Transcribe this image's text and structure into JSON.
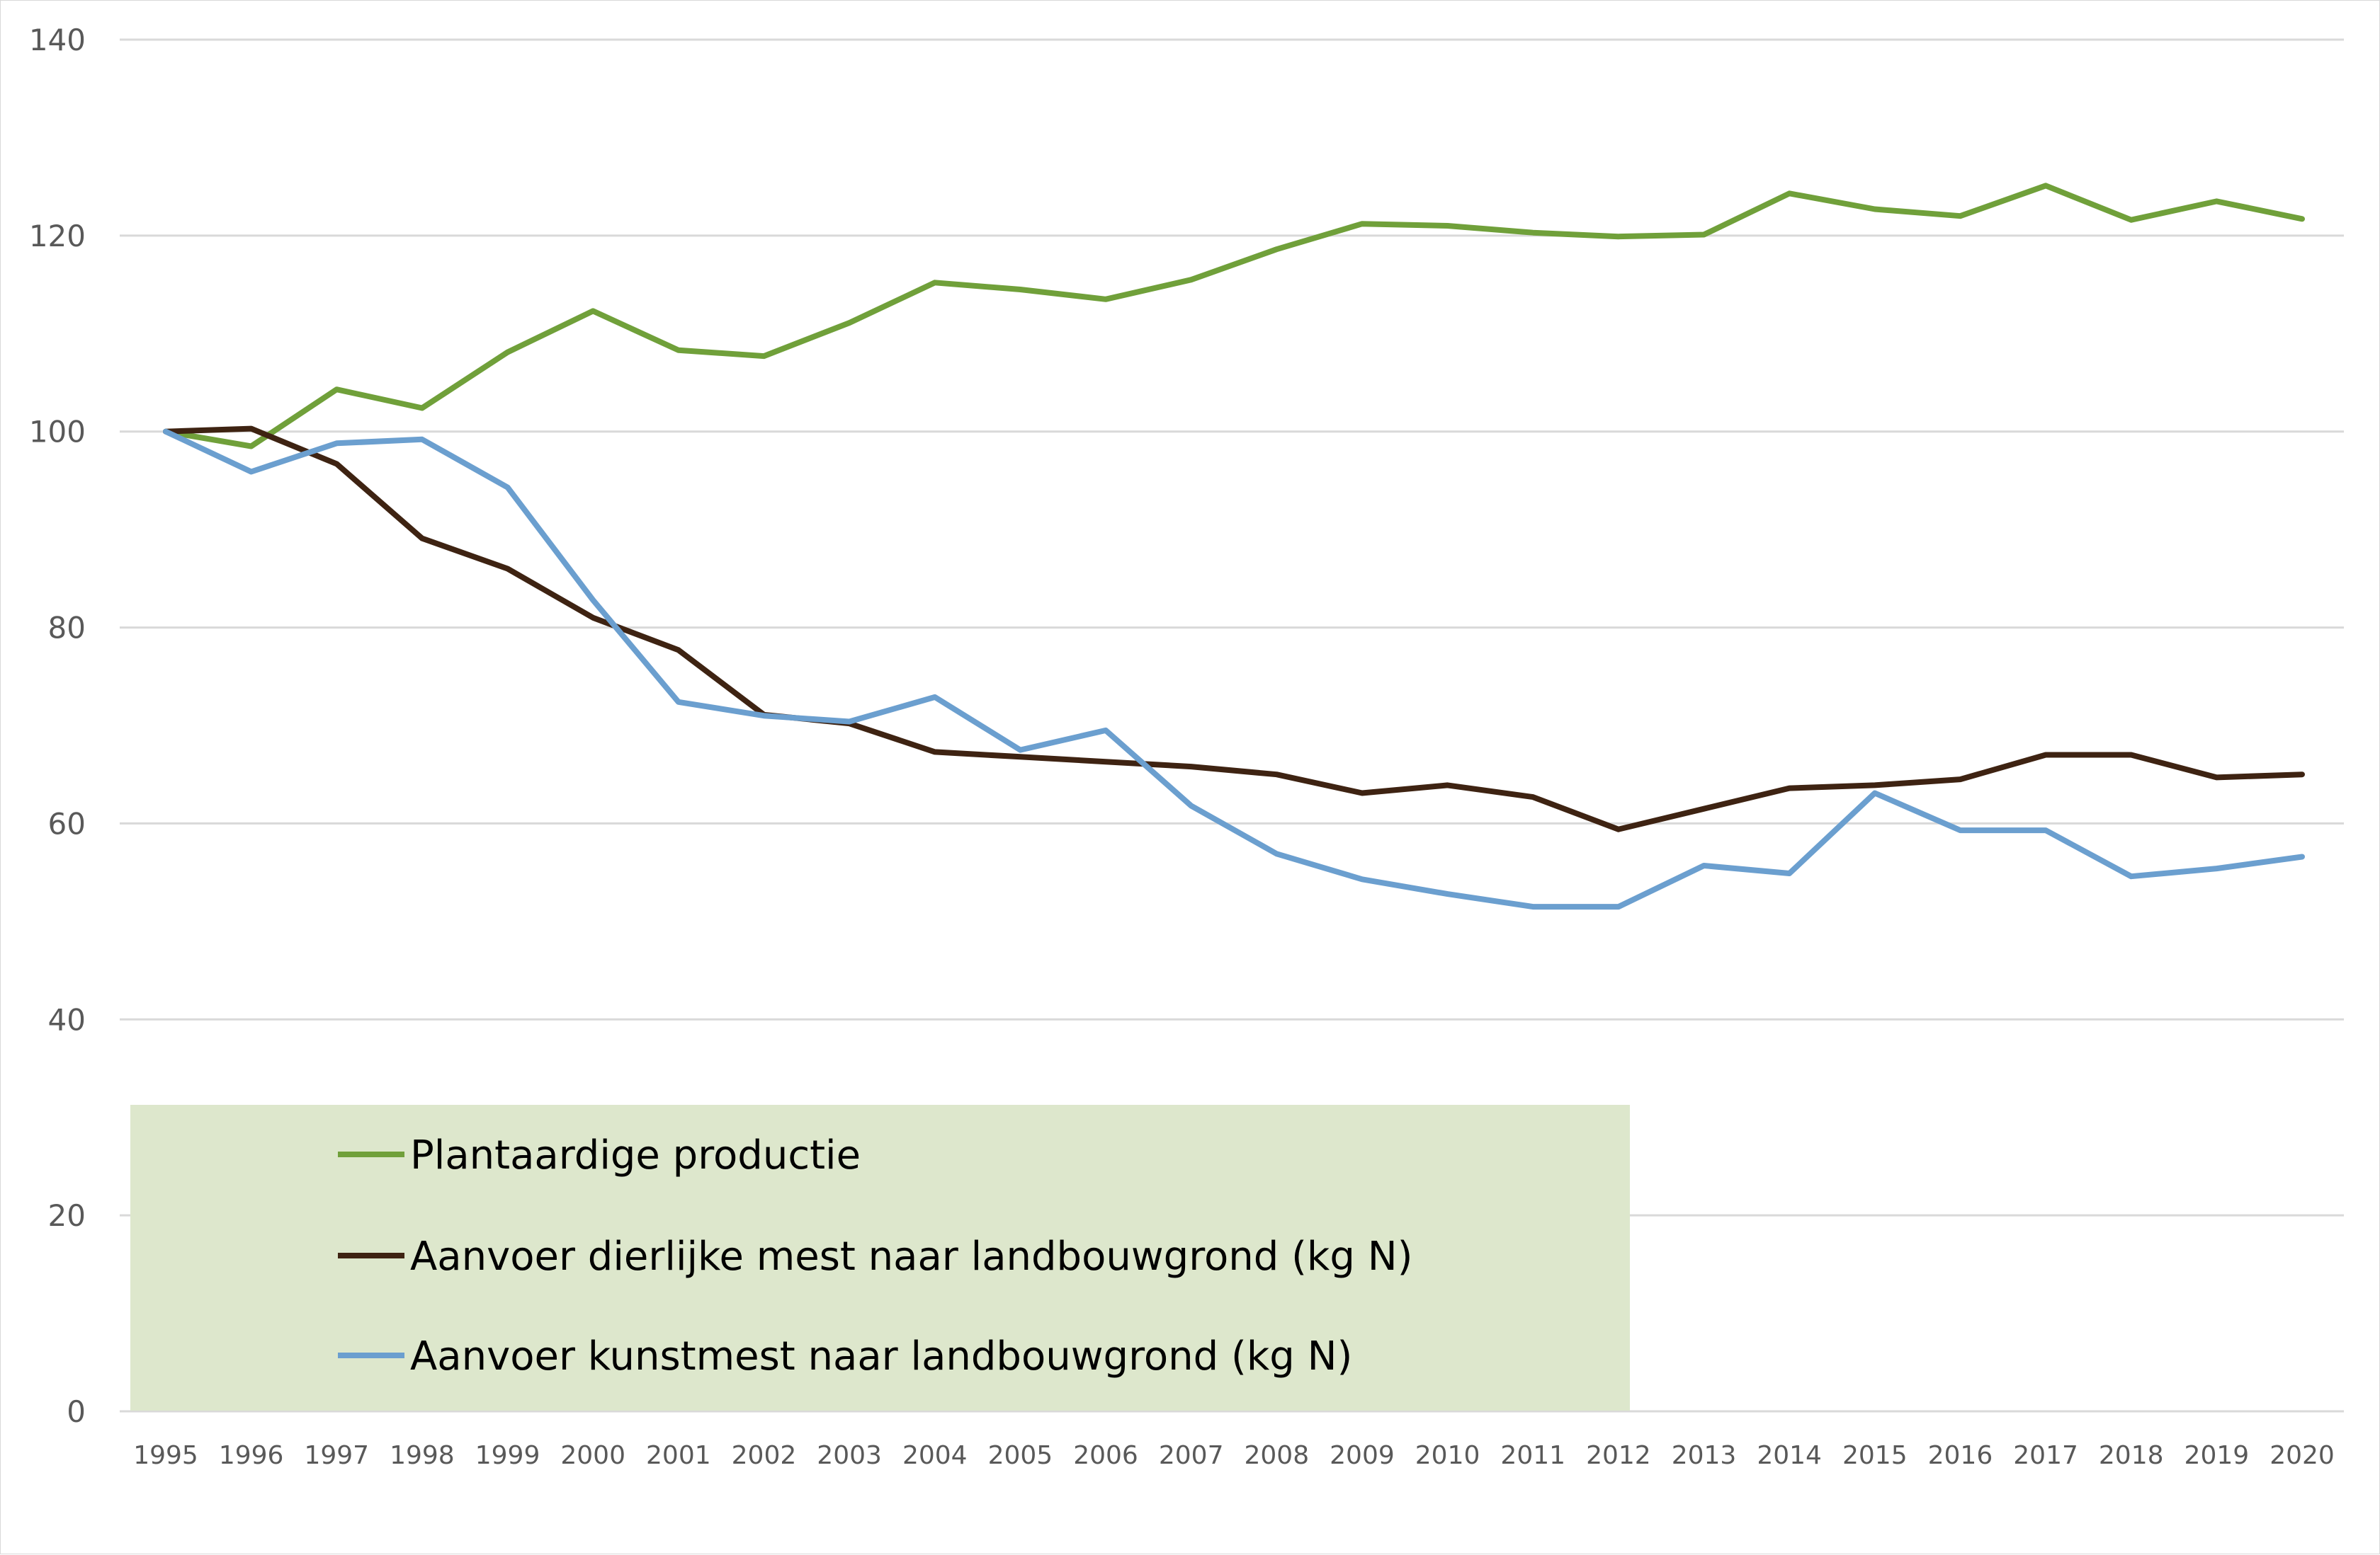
{
  "chart_data": {
    "type": "line",
    "title": "",
    "xlabel": "",
    "ylabel": "",
    "ylim": [
      0,
      140
    ],
    "y_ticks": [
      "0",
      "20",
      "40",
      "60",
      "80",
      "100",
      "120",
      "140"
    ],
    "grid": true,
    "legend_position": "bottom-left",
    "categories": [
      "1995",
      "1996",
      "1997",
      "1998",
      "1999",
      "2000",
      "2001",
      "2002",
      "2003",
      "2004",
      "2005",
      "2006",
      "2007",
      "2008",
      "2009",
      "2010",
      "2011",
      "2012",
      "2013",
      "2014",
      "2015",
      "2016",
      "2017",
      "2018",
      "2019",
      "2020"
    ],
    "series": [
      {
        "name": "Plantaardige productie",
        "color": "#70A03A",
        "values": [
          100,
          98.5,
          104.3,
          102.4,
          108.1,
          112.3,
          108.3,
          107.7,
          111.1,
          115.2,
          114.5,
          113.5,
          115.5,
          118.6,
          121.2,
          121.0,
          120.3,
          119.9,
          120.1,
          124.3,
          122.7,
          122.0,
          125.1,
          121.6,
          123.5,
          121.7
        ]
      },
      {
        "name": "Aanvoer dierlijke mest naar landbouwgrond (kg N)",
        "color": "#3E2312",
        "values": [
          100,
          100.3,
          96.7,
          89.1,
          86.0,
          81.0,
          77.7,
          71.1,
          70.2,
          67.3,
          66.8,
          66.3,
          65.8,
          65.0,
          63.1,
          63.9,
          62.7,
          59.4,
          61.5,
          63.6,
          63.9,
          64.5,
          67.0,
          67.0,
          64.7,
          65.0
        ]
      },
      {
        "name": "Aanvoer kunstmest naar landbouwgrond (kg N)",
        "color": "#6B9FCF",
        "values": [
          100,
          95.9,
          98.8,
          99.2,
          94.3,
          82.8,
          72.4,
          71.0,
          70.4,
          72.9,
          67.5,
          69.5,
          61.8,
          56.9,
          54.3,
          52.8,
          51.5,
          51.5,
          55.7,
          54.9,
          63.1,
          59.3,
          59.3,
          54.6,
          55.4,
          56.6
        ]
      }
    ]
  }
}
